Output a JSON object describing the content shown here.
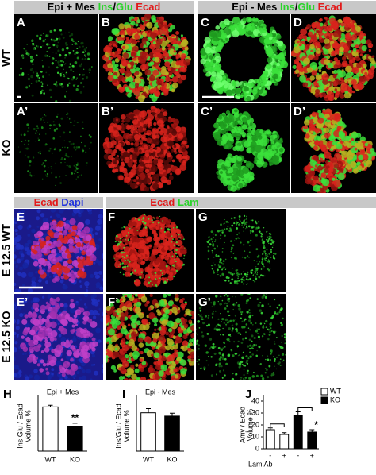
{
  "headers": {
    "left": [
      "Epi + Mes",
      "Ins",
      "/",
      "Glu",
      "Ecad"
    ],
    "right": [
      "Epi - Mes",
      "Ins",
      "/",
      "Glu",
      "Ecad"
    ],
    "e": [
      "Ecad",
      "Dapi"
    ],
    "fg": [
      "Ecad",
      "Lam"
    ]
  },
  "panel_labels": [
    "A",
    "B",
    "C",
    "D",
    "A’",
    "B’",
    "C’",
    "D’",
    "E",
    "F",
    "G",
    "E’",
    "F’",
    "G’"
  ],
  "row_labels": [
    "WT",
    "KO",
    "E 12.5 WT",
    "E 12.5 KO"
  ],
  "chart_data": [
    {
      "type": "bar",
      "panel": "H",
      "title": "Epi + Mes",
      "ylabel": [
        "Ins.Glu / Ecad",
        "Volume %"
      ],
      "categories": [
        "WT",
        "KO"
      ],
      "values": [
        5.3,
        3.0
      ],
      "errors": [
        0.2,
        0.35
      ],
      "colors": [
        "#ffffff",
        "#000000"
      ],
      "ylim": [
        0,
        6
      ],
      "annotation": "**"
    },
    {
      "type": "bar",
      "panel": "I",
      "title": "Epi - Mes",
      "ylabel": [
        "Ins/Glu / Ecad",
        "Volume %"
      ],
      "categories": [
        "WT",
        "KO"
      ],
      "values": [
        4.6,
        4.2
      ],
      "errors": [
        0.5,
        0.35
      ],
      "colors": [
        "#ffffff",
        "#000000"
      ],
      "ylim": [
        0,
        6
      ]
    },
    {
      "type": "grouped-bar",
      "panel": "J",
      "ylabel": [
        "Amy / Ecad",
        "Volume %"
      ],
      "xlabel": "Lam Ab",
      "categories": [
        "-",
        "+"
      ],
      "series": [
        {
          "name": "WT",
          "color": "#ffffff",
          "values": [
            16,
            12
          ],
          "errors": [
            1.5,
            1.5
          ]
        },
        {
          "name": "KO",
          "color": "#000000",
          "values": [
            28,
            14
          ],
          "errors": [
            3,
            2
          ]
        }
      ],
      "ylim": [
        0,
        40
      ],
      "yticks": [
        0,
        10,
        20,
        30,
        40
      ],
      "annotation": "*",
      "legend": "top-right"
    }
  ]
}
